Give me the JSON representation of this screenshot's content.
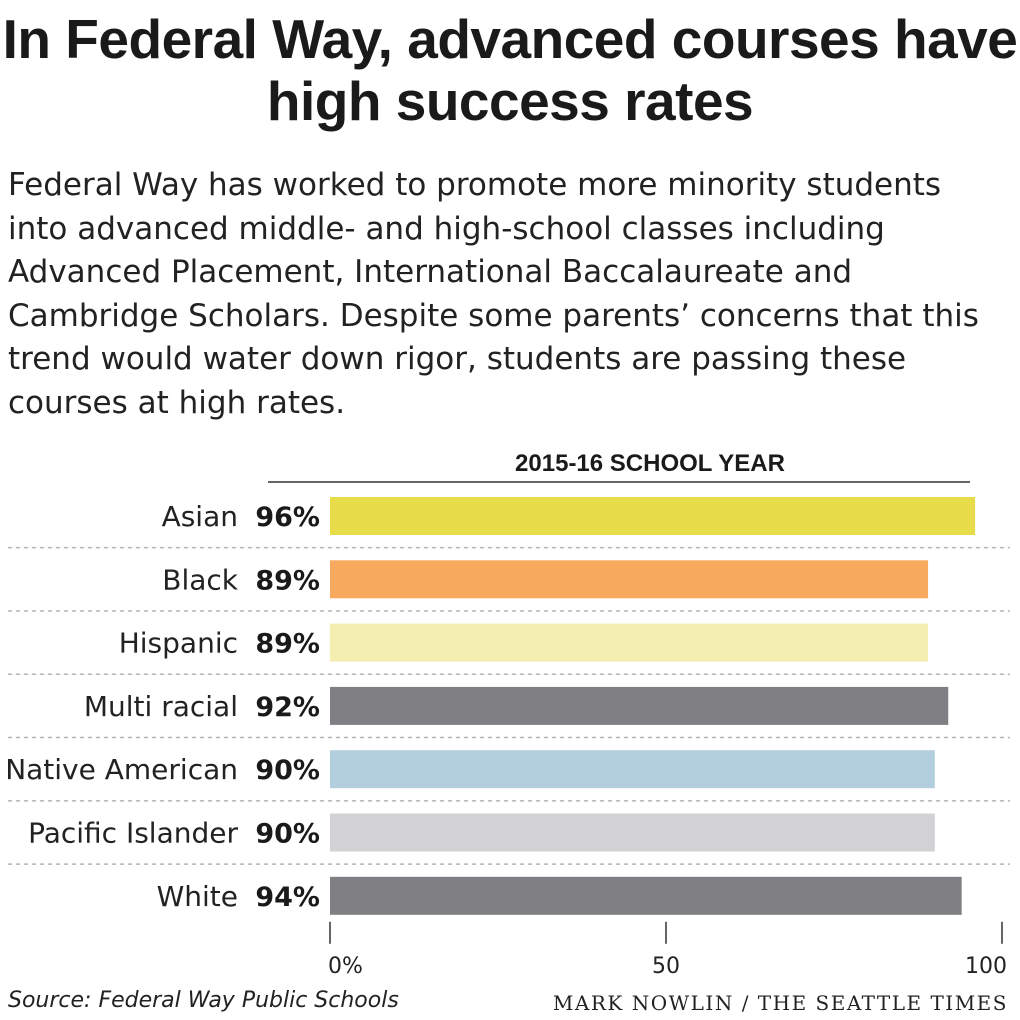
{
  "headline": "In Federal Way, advanced courses have high success rates",
  "dek": "Federal Way has worked to promote more minority students into advanced middle- and high-school classes including Advanced Placement, International Baccalaureate and Cambridge Scholars. Despite some parents’ concerns that this trend would water down rigor, students are passing these courses at high rates.",
  "footer": {
    "source": "Source: Federal Way Public Schools",
    "credit": "MARK NOWLIN / THE SEATTLE TIMES"
  },
  "chart_data": {
    "type": "bar",
    "orientation": "horizontal",
    "title": "2015-16 SCHOOL YEAR",
    "categories": [
      "Asian",
      "Black",
      "Hispanic",
      "Multi racial",
      "Native American",
      "Pacific Islander",
      "White"
    ],
    "values": [
      96,
      89,
      89,
      92,
      90,
      90,
      94
    ],
    "value_labels": [
      "96%",
      "89%",
      "89%",
      "92%",
      "90%",
      "90%",
      "94%"
    ],
    "colors": [
      "#e8dc4a",
      "#f7a95e",
      "#f4efb0",
      "#808084",
      "#b3cfde",
      "#d2d2d4",
      "#808084"
    ],
    "xlim": [
      0,
      100
    ],
    "xticks": [
      0,
      50,
      100
    ],
    "xtick_labels": [
      "0%",
      "50",
      "100"
    ],
    "grid": false
  }
}
